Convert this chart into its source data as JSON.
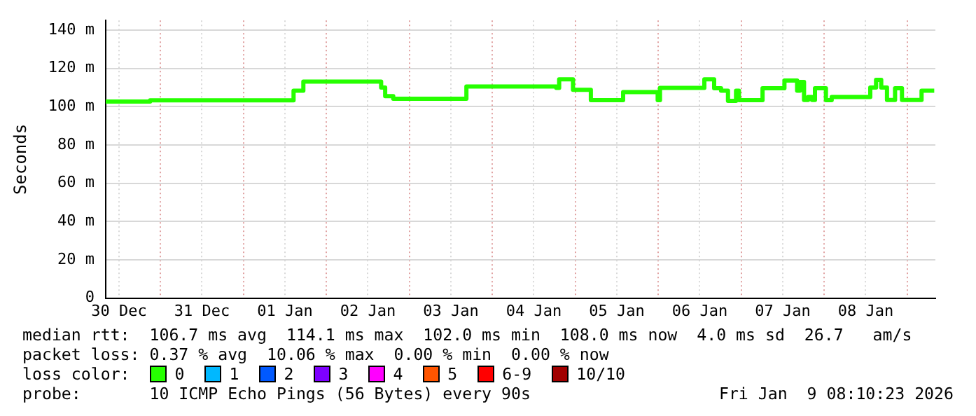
{
  "chart_data": {
    "type": "step",
    "ylabel": "Seconds",
    "legend_title": "loss color:",
    "legend": "bottom",
    "grid": true,
    "x": [
      "2025-12-30T08:10",
      "2025-12-30T21:00",
      "2026-01-01T14:30",
      "2026-01-01T17:20",
      "2026-01-02T15:50",
      "2026-01-02T17:00",
      "2026-01-02T19:20",
      "2026-01-03T16:30",
      "2026-01-04T18:30",
      "2026-01-04T19:20",
      "2026-01-04T23:20",
      "2026-01-05T04:30",
      "2026-01-05T13:50",
      "2026-01-05T23:50",
      "2026-01-06T00:30",
      "2026-01-06T13:20",
      "2026-01-06T16:10",
      "2026-01-06T18:10",
      "2026-01-06T20:10",
      "2026-01-06T22:30",
      "2026-01-06T23:20",
      "2026-01-07T06:10",
      "2026-01-07T12:30",
      "2026-01-07T16:10",
      "2026-01-07T17:00",
      "2026-01-07T18:10",
      "2026-01-07T19:20",
      "2026-01-07T20:30",
      "2026-01-07T21:20",
      "2026-01-08T00:30",
      "2026-01-08T02:10",
      "2026-01-08T13:20",
      "2026-01-08T15:00",
      "2026-01-08T16:30",
      "2026-01-08T18:10",
      "2026-01-08T20:30",
      "2026-01-08T22:30",
      "2026-01-09T04:10",
      "2026-01-09T06:10",
      "2026-01-09T07:50"
    ],
    "series": [
      {
        "name": "0",
        "color": "#26ff00",
        "values": [
          102.6,
          103.3,
          108.3,
          113.1,
          110,
          105.5,
          104.1,
          110.5,
          109.8,
          114.3,
          108.8,
          103.4,
          107.6,
          103.4,
          109.8,
          114.3,
          109.6,
          108.3,
          103,
          108.3,
          103.4,
          109.6,
          113.6,
          108.3,
          112.9,
          103.5,
          105,
          103.5,
          109.6,
          103.4,
          105,
          110,
          114,
          110,
          103.5,
          109.6,
          103.5,
          108.3,
          108.3,
          108.3
        ]
      },
      {
        "name": "1",
        "color": "#00b8ff",
        "values": [
          null,
          null,
          null,
          null,
          null,
          null,
          null,
          null,
          null,
          null,
          null,
          null,
          null,
          null,
          null,
          null,
          null,
          null,
          null,
          null,
          null,
          null,
          null,
          null,
          null,
          null,
          null,
          null,
          null,
          null,
          null,
          null,
          null,
          null,
          null,
          null,
          null,
          null,
          null,
          null
        ]
      },
      {
        "name": "2",
        "color": "#0059ff",
        "values": [
          null,
          null,
          null,
          null,
          null,
          null,
          null,
          null,
          null,
          null,
          null,
          null,
          null,
          null,
          null,
          null,
          null,
          null,
          null,
          null,
          null,
          null,
          null,
          null,
          null,
          null,
          null,
          null,
          null,
          null,
          null,
          null,
          null,
          null,
          null,
          null,
          null,
          null,
          null,
          null
        ]
      },
      {
        "name": "3",
        "color": "#7e00ff",
        "values": [
          null,
          null,
          null,
          null,
          null,
          null,
          null,
          null,
          null,
          null,
          null,
          null,
          null,
          null,
          null,
          null,
          null,
          null,
          null,
          null,
          null,
          null,
          null,
          null,
          null,
          null,
          null,
          null,
          null,
          null,
          null,
          null,
          null,
          null,
          null,
          null,
          null,
          null,
          null,
          null
        ]
      },
      {
        "name": "4",
        "color": "#ff00ff",
        "values": [
          null,
          null,
          null,
          null,
          null,
          null,
          null,
          null,
          null,
          null,
          null,
          null,
          null,
          null,
          null,
          null,
          null,
          null,
          null,
          null,
          null,
          null,
          null,
          null,
          null,
          null,
          null,
          null,
          null,
          null,
          null,
          null,
          null,
          null,
          null,
          null,
          null,
          null,
          null,
          null
        ]
      },
      {
        "name": "5",
        "color": "#ff5500",
        "values": [
          null,
          null,
          null,
          null,
          null,
          null,
          null,
          null,
          null,
          null,
          null,
          null,
          null,
          null,
          null,
          null,
          null,
          null,
          null,
          null,
          null,
          null,
          null,
          null,
          null,
          null,
          null,
          null,
          null,
          null,
          null,
          null,
          null,
          null,
          null,
          null,
          null,
          null,
          null,
          null
        ]
      },
      {
        "name": "6-9",
        "color": "#ff0000",
        "values": [
          null,
          null,
          null,
          null,
          null,
          null,
          null,
          null,
          null,
          null,
          null,
          null,
          null,
          null,
          null,
          null,
          null,
          null,
          null,
          null,
          null,
          null,
          null,
          null,
          null,
          null,
          null,
          null,
          null,
          null,
          null,
          null,
          null,
          null,
          null,
          null,
          null,
          null,
          null,
          null
        ]
      },
      {
        "name": "10/10",
        "color": "#a10000",
        "values": [
          null,
          null,
          null,
          null,
          null,
          null,
          null,
          null,
          null,
          null,
          null,
          null,
          null,
          null,
          null,
          null,
          null,
          null,
          null,
          null,
          null,
          null,
          null,
          null,
          null,
          null,
          null,
          null,
          null,
          null,
          null,
          null,
          null,
          null,
          null,
          null,
          null,
          null,
          null,
          null
        ]
      }
    ],
    "xlim": [
      "2025-12-30T08:10",
      "2026-01-09T08:10"
    ],
    "xticks": [
      {
        "value": "2025-12-30T12:00",
        "label": "30 Dec"
      },
      {
        "value": "2025-12-31T00:00",
        "label": null
      },
      {
        "value": "2025-12-31T12:00",
        "label": "31 Dec"
      },
      {
        "value": "2026-01-01T00:00",
        "label": null
      },
      {
        "value": "2026-01-01T12:00",
        "label": "01 Jan"
      },
      {
        "value": "2026-01-02T00:00",
        "label": null
      },
      {
        "value": "2026-01-02T12:00",
        "label": "02 Jan"
      },
      {
        "value": "2026-01-03T00:00",
        "label": null
      },
      {
        "value": "2026-01-03T12:00",
        "label": "03 Jan"
      },
      {
        "value": "2026-01-04T00:00",
        "label": null
      },
      {
        "value": "2026-01-04T12:00",
        "label": "04 Jan"
      },
      {
        "value": "2026-01-05T00:00",
        "label": null
      },
      {
        "value": "2026-01-05T12:00",
        "label": "05 Jan"
      },
      {
        "value": "2026-01-06T00:00",
        "label": null
      },
      {
        "value": "2026-01-06T12:00",
        "label": "06 Jan"
      },
      {
        "value": "2026-01-07T00:00",
        "label": null
      },
      {
        "value": "2026-01-07T12:00",
        "label": "07 Jan"
      },
      {
        "value": "2026-01-08T00:00",
        "label": null
      },
      {
        "value": "2026-01-08T12:00",
        "label": "08 Jan"
      },
      {
        "value": "2026-01-09T00:00",
        "label": null
      }
    ],
    "ylim": [
      0,
      145
    ],
    "yticks": [
      0,
      {
        "value": 20,
        "label": "20 m"
      },
      {
        "value": 40,
        "label": "40 m"
      },
      {
        "value": 60,
        "label": "60 m"
      },
      {
        "value": 80,
        "label": "80 m"
      },
      {
        "value": 100,
        "label": "100 m"
      },
      {
        "value": 120,
        "label": "120 m"
      },
      {
        "value": 140,
        "label": "140 m"
      }
    ],
    "annotations": [
      "median rtt:  106.7 ms avg  114.1 ms max  102.0 ms min  108.0 ms now  4.0 ms sd  26.7   am/s",
      "packet loss: 0.37 % avg  10.06 % max  0.00 % min  0.00 % now",
      "probe:       10 ICMP Echo Pings (56 Bytes) every 90s",
      "Fri Jan  9 08:10:23 2026"
    ]
  }
}
